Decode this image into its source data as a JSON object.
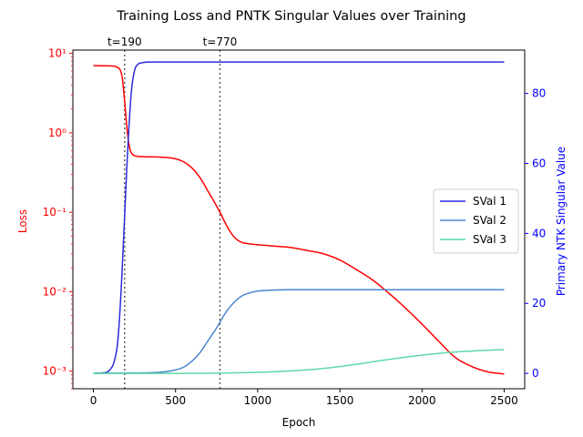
{
  "chart_data": {
    "type": "line",
    "title": "Training Loss and PNTK Singular Values over Training",
    "xlabel": "Epoch",
    "ylabel_left": "Loss",
    "ylabel_right": "Primary NTK Singular Value",
    "xlim": [
      -125,
      2625
    ],
    "xticks": [
      0,
      500,
      1000,
      1500,
      2000,
      2500
    ],
    "ylim_left_log": [
      0.0006,
      11
    ],
    "yticks_left": [
      {
        "value": 0.001,
        "label": "10⁻³"
      },
      {
        "value": 0.01,
        "label": "10⁻²"
      },
      {
        "value": 0.1,
        "label": "10⁻¹"
      },
      {
        "value": 1,
        "label": "10⁰"
      },
      {
        "value": 10,
        "label": "10¹"
      }
    ],
    "ylim_right": [
      -4.4,
      92.4
    ],
    "yticks_right": [
      0,
      20,
      40,
      60,
      80
    ],
    "vlines": [
      {
        "x": 190,
        "label": "t=190"
      },
      {
        "x": 770,
        "label": "t=770"
      }
    ],
    "loss": {
      "name": "Loss",
      "color": "#ff0000",
      "axis": "left",
      "x": [
        0,
        100,
        150,
        175,
        190,
        205,
        220,
        240,
        260,
        300,
        400,
        500,
        550,
        600,
        650,
        700,
        740,
        770,
        800,
        830,
        860,
        900,
        950,
        1000,
        1100,
        1200,
        1300,
        1400,
        1500,
        1600,
        1700,
        1800,
        1900,
        2000,
        2100,
        2200,
        2300,
        2400,
        2500
      ],
      "y": [
        7.0,
        6.95,
        6.6,
        5.0,
        2.5,
        1.1,
        0.65,
        0.53,
        0.51,
        0.5,
        0.495,
        0.47,
        0.43,
        0.36,
        0.27,
        0.18,
        0.13,
        0.1,
        0.075,
        0.058,
        0.048,
        0.042,
        0.04,
        0.039,
        0.0375,
        0.036,
        0.033,
        0.03,
        0.025,
        0.019,
        0.014,
        0.0095,
        0.0062,
        0.0039,
        0.0024,
        0.0015,
        0.00115,
        0.00098,
        0.00092
      ]
    },
    "series": [
      {
        "name": "SVal 1",
        "color": "#2b2bdb",
        "axis": "right",
        "x": [
          0,
          50,
          100,
          130,
          150,
          170,
          190,
          210,
          230,
          250,
          270,
          300,
          350,
          400,
          500,
          1000,
          1500,
          2000,
          2500
        ],
        "y": [
          0,
          0.1,
          1,
          4,
          10,
          25,
          45,
          65,
          80,
          86.5,
          88.3,
          88.8,
          89,
          89,
          89,
          89,
          89,
          89,
          89
        ]
      },
      {
        "name": "SVal 2",
        "color": "#4a86cf",
        "axis": "right",
        "x": [
          0,
          200,
          400,
          500,
          550,
          600,
          650,
          700,
          750,
          770,
          800,
          850,
          900,
          950,
          1000,
          1100,
          1200,
          1500,
          2000,
          2500
        ],
        "y": [
          0,
          0.1,
          0.3,
          1,
          1.8,
          3.5,
          6,
          9.5,
          13,
          14.6,
          17,
          20,
          22,
          23,
          23.5,
          23.8,
          23.9,
          23.9,
          23.9,
          23.9
        ]
      },
      {
        "name": "SVal 3",
        "color": "#5fd8a8",
        "axis": "right",
        "x": [
          0,
          500,
          800,
          1000,
          1200,
          1400,
          1600,
          1800,
          2000,
          2200,
          2400,
          2500
        ],
        "y": [
          0,
          0,
          0.1,
          0.3,
          0.7,
          1.4,
          2.6,
          4.0,
          5.2,
          6.1,
          6.6,
          6.8
        ]
      }
    ],
    "legend": {
      "position": "center-right",
      "entries": [
        "SVal 1",
        "SVal 2",
        "SVal 3"
      ]
    },
    "colors": {
      "left_axis": "#ff0000",
      "right_axis": "#0000ff",
      "vline": "#555555"
    }
  }
}
